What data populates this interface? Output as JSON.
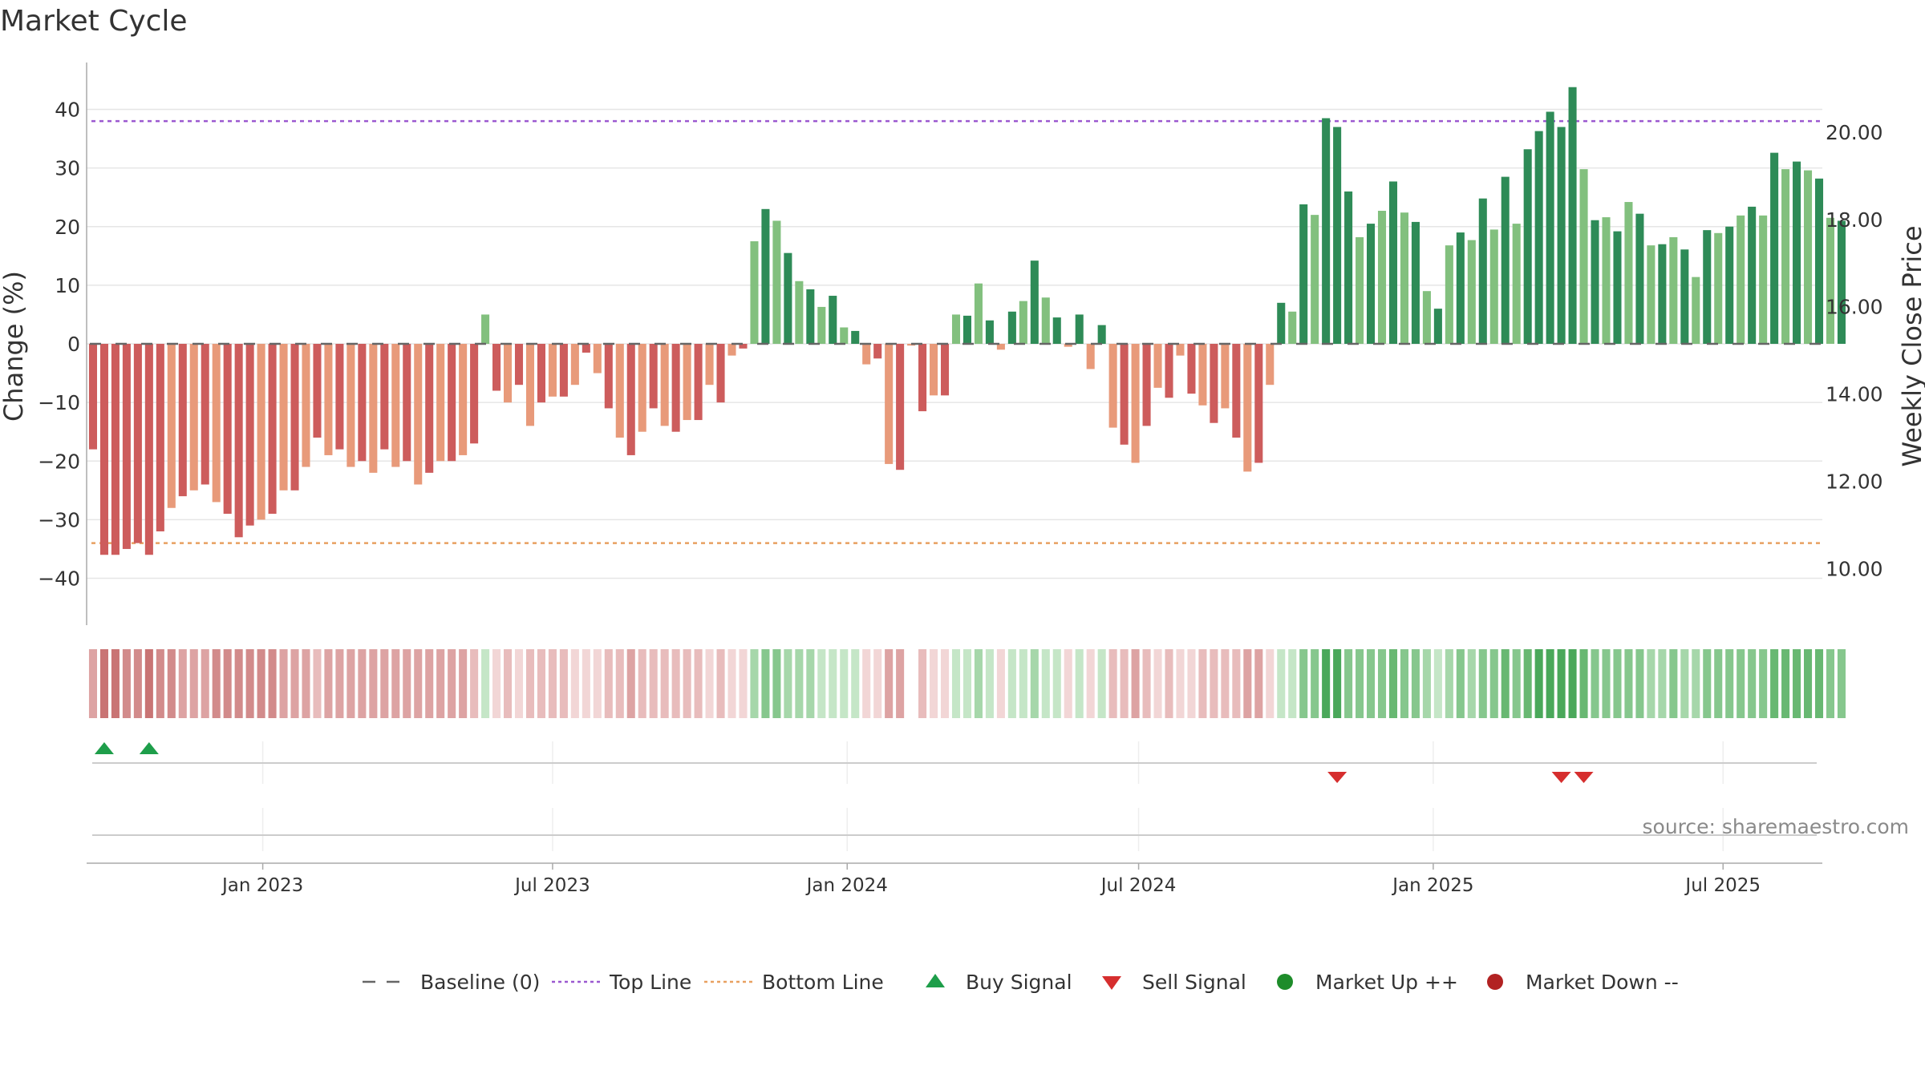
{
  "chart_data": {
    "type": "bar",
    "title": "Market Cycle",
    "ylabel": "Change (%)",
    "y2label": "Weekly Close Price",
    "ylim": [
      -48,
      48
    ],
    "y2lim": [
      8.7,
      21.6
    ],
    "yticks": [
      40,
      30,
      20,
      10,
      0,
      -10,
      -20,
      -30,
      -40
    ],
    "y2ticks": [
      "20.00",
      "18.00",
      "16.00",
      "14.00",
      "12.00",
      "10.00"
    ],
    "x_range": [
      "2022-09-13",
      "2025-09-01"
    ],
    "x_ticks": [
      {
        "date": "2023-01-01",
        "label": "Jan 2023"
      },
      {
        "date": "2023-07-01",
        "label": "Jul 2023"
      },
      {
        "date": "2024-01-01",
        "label": "Jan 2024"
      },
      {
        "date": "2024-07-01",
        "label": "Jul 2024"
      },
      {
        "date": "2025-01-01",
        "label": "Jan 2025"
      },
      {
        "date": "2025-07-01",
        "label": "Jul 2025"
      }
    ],
    "start_week": "2022-09-17",
    "top_line": 38,
    "bottom_line": -34,
    "grid": true,
    "legend_position": "bottom",
    "series": [
      {
        "name": "Change (%)",
        "values": [
          -18,
          -36,
          -36,
          -35,
          -34,
          -36,
          -32,
          -28,
          -26,
          -25,
          -24,
          -27,
          -29,
          -33,
          -31,
          -30,
          -29,
          -25,
          -25,
          -21,
          -16,
          -19,
          -18,
          -21,
          -20,
          -22,
          -18,
          -21,
          -20,
          -24,
          -22,
          -20,
          -20,
          -19,
          -17,
          5,
          -8,
          -10,
          -7,
          -14,
          -10,
          -9,
          -9,
          -7,
          -1.5,
          -5,
          -11,
          -16,
          -19,
          -15,
          -11,
          -14,
          -15,
          -13,
          -13,
          -7,
          -10,
          -2,
          -0.8,
          17.5,
          23,
          21,
          15.5,
          10.7,
          9.3,
          6.3,
          8.2,
          2.8,
          2.2,
          -3.5,
          -2.5,
          -20.5,
          -21.5,
          -0.3,
          -11.5,
          -8.8,
          -8.8,
          5,
          4.8,
          10.3,
          4,
          -1,
          5.5,
          7.3,
          14.2,
          7.9,
          4.5,
          -0.5,
          5,
          -4.3,
          3.2,
          -14.3,
          -17.2,
          -20.3,
          -14,
          -7.5,
          -9.2,
          -2,
          -8.5,
          -10.5,
          -13.5,
          -11,
          -16,
          -21.8,
          -20.3,
          -7,
          7,
          5.5,
          23.8,
          22,
          38.5,
          37,
          26,
          18.2,
          20.5,
          22.7,
          27.7,
          22.4,
          20.8,
          9,
          6,
          16.8,
          19,
          17.7,
          24.8,
          19.5,
          28.5,
          20.5,
          33.2,
          36.3,
          39.6,
          37,
          43.8,
          29.8,
          21.1,
          21.6,
          19.2,
          24.2,
          22.2,
          16.8,
          17,
          18.2,
          16.1,
          11.4,
          19.4,
          18.9,
          20,
          21.9,
          23.4,
          21.9,
          32.6,
          29.8,
          31.1,
          29.6,
          28.2,
          21.5,
          21
        ],
        "buy_signal_weeks": [
          1,
          5
        ],
        "sell_signal_weeks": [
          111,
          131,
          133
        ]
      }
    ]
  },
  "legend": [
    {
      "label": "Baseline (0)",
      "kind": "dashline",
      "color": "#666666"
    },
    {
      "label": "Top Line",
      "kind": "dotline",
      "color": "#9b59d0"
    },
    {
      "label": "Bottom Line",
      "kind": "dotline",
      "color": "#e8a060"
    },
    {
      "label": "Buy Signal",
      "kind": "tri-up",
      "color": "#1e9e4a"
    },
    {
      "label": "Sell Signal",
      "kind": "tri-down",
      "color": "#d62e2e"
    },
    {
      "label": "Market Up ++",
      "kind": "dot",
      "color": "#1e8c2a"
    },
    {
      "label": "Market Down --",
      "kind": "dot",
      "color": "#b22222"
    }
  ],
  "colors": {
    "strong_up": "#2e8b57",
    "weak_up": "#82c07e",
    "strong_down": "#cd5c5c",
    "weak_down": "#e89a7a",
    "top_line": "#9b59d0",
    "bottom_line": "#e8a060",
    "grid": "#e6e6e6",
    "axis": "#aaaaaa"
  },
  "source": "source: sharemaestro.com"
}
